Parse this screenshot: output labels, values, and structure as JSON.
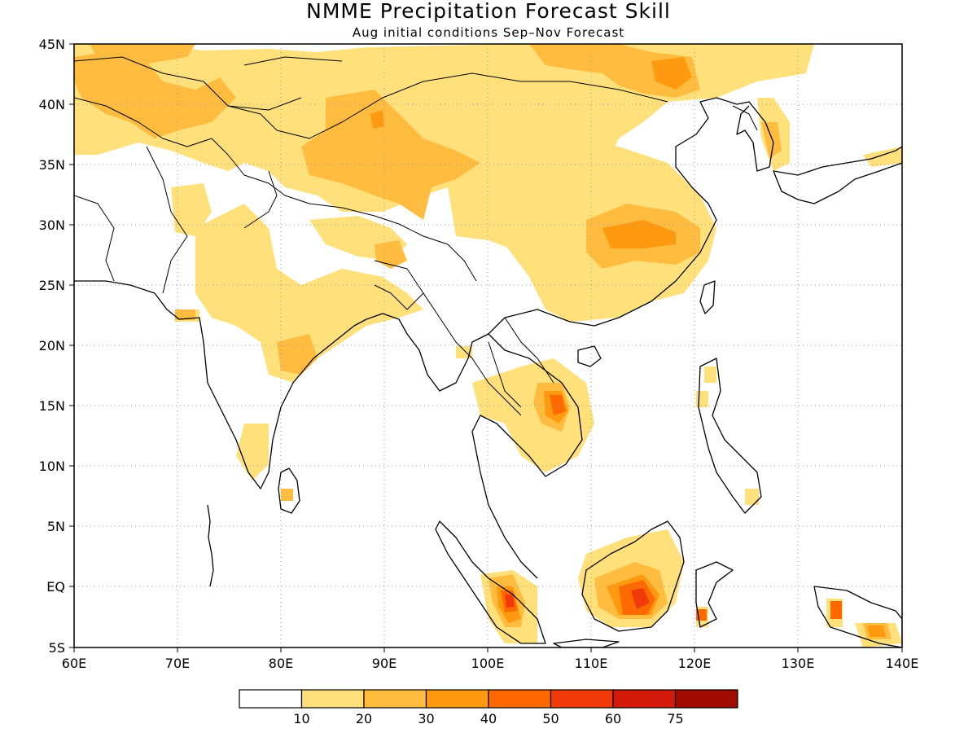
{
  "header": {
    "title": "NMME Precipitation Forecast Skill",
    "subtitle": "Aug initial conditions  Sep–Nov Forecast"
  },
  "map": {
    "lon_range": [
      60,
      140
    ],
    "lat_range": [
      -5,
      45
    ],
    "lon_ticks": [
      {
        "value": 60,
        "label": "60E"
      },
      {
        "value": 70,
        "label": "70E"
      },
      {
        "value": 80,
        "label": "80E"
      },
      {
        "value": 90,
        "label": "90E"
      },
      {
        "value": 100,
        "label": "100E"
      },
      {
        "value": 110,
        "label": "110E"
      },
      {
        "value": 120,
        "label": "120E"
      },
      {
        "value": 130,
        "label": "130E"
      },
      {
        "value": 140,
        "label": "140E"
      }
    ],
    "lat_ticks": [
      {
        "value": 45,
        "label": "45N"
      },
      {
        "value": 40,
        "label": "40N"
      },
      {
        "value": 35,
        "label": "35N"
      },
      {
        "value": 30,
        "label": "30N"
      },
      {
        "value": 25,
        "label": "25N"
      },
      {
        "value": 20,
        "label": "20N"
      },
      {
        "value": 15,
        "label": "15N"
      },
      {
        "value": 10,
        "label": "10N"
      },
      {
        "value": 5,
        "label": "5N"
      },
      {
        "value": 0,
        "label": "EQ"
      },
      {
        "value": -5,
        "label": "5S"
      }
    ],
    "grid": true
  },
  "colorbar": {
    "colors": [
      "#ffffff",
      "#ffe07a",
      "#ffbc3f",
      "#ff9a10",
      "#ff6a00",
      "#f03a0a",
      "#d41a0a",
      "#a00a00"
    ],
    "labels": [
      "10",
      "20",
      "30",
      "40",
      "50",
      "60",
      "75"
    ]
  },
  "skill_regions": [
    {
      "lon": 64,
      "lat": 42,
      "level": 2
    },
    {
      "lon": 70,
      "lat": 39,
      "level": 2
    },
    {
      "lon": 91,
      "lat": 37,
      "level": 2
    },
    {
      "lon": 93,
      "lat": 33,
      "level": 2
    },
    {
      "lon": 116,
      "lat": 43,
      "level": 2
    },
    {
      "lon": 113,
      "lat": 29,
      "level": 2
    },
    {
      "lon": 107,
      "lat": 15,
      "level": 3
    },
    {
      "lon": 113,
      "lat": -1,
      "level": 3
    },
    {
      "lon": 102,
      "lat": -2,
      "level": 3
    }
  ]
}
